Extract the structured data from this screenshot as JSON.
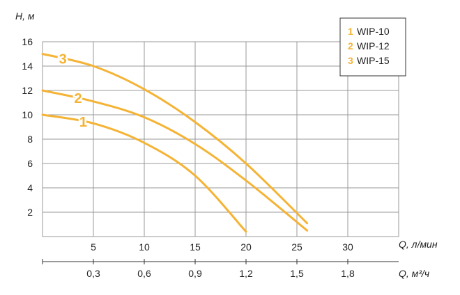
{
  "chart_data": {
    "type": "line",
    "ylabel": "H, м",
    "xlabel": "Q, л/мин",
    "xlabel_secondary": "Q, м³/ч",
    "x_ticks": [
      5,
      10,
      15,
      20,
      25,
      30
    ],
    "x_ticks_secondary": [
      "0,3",
      "0,6",
      "0,9",
      "1,2",
      "1,5",
      "1,8"
    ],
    "y_ticks": [
      2,
      4,
      6,
      8,
      10,
      12,
      14,
      16
    ],
    "xlim": [
      0,
      35
    ],
    "ylim": [
      0,
      16
    ],
    "series_color": "#f5b335",
    "legend_position": "top-right",
    "series": [
      {
        "id": "1",
        "name": "WIP-10",
        "x": [
          0,
          5,
          10,
          15,
          20
        ],
        "y": [
          10,
          9.3,
          7.7,
          5.0,
          0.4
        ]
      },
      {
        "id": "2",
        "name": "WIP-12",
        "x": [
          0,
          5,
          10,
          15,
          20,
          26
        ],
        "y": [
          12,
          11.1,
          9.8,
          7.6,
          4.6,
          0.5
        ]
      },
      {
        "id": "3",
        "name": "WIP-15",
        "x": [
          0,
          5,
          10,
          15,
          20,
          26
        ],
        "y": [
          15,
          14.0,
          12.1,
          9.4,
          6.0,
          1.1
        ]
      }
    ]
  }
}
